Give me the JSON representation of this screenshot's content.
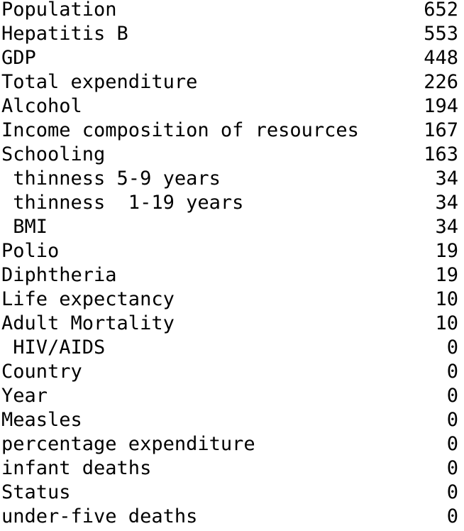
{
  "rows": [
    {
      "name": "Population",
      "count": "652"
    },
    {
      "name": "Hepatitis B",
      "count": "553"
    },
    {
      "name": "GDP",
      "count": "448"
    },
    {
      "name": "Total expenditure",
      "count": "226"
    },
    {
      "name": "Alcohol",
      "count": "194"
    },
    {
      "name": "Income composition of resources",
      "count": "167"
    },
    {
      "name": "Schooling",
      "count": "163"
    },
    {
      "name": " thinness 5-9 years",
      "count": "34"
    },
    {
      "name": " thinness  1-19 years",
      "count": "34"
    },
    {
      "name": " BMI",
      "count": "34"
    },
    {
      "name": "Polio",
      "count": "19"
    },
    {
      "name": "Diphtheria",
      "count": "19"
    },
    {
      "name": "Life expectancy",
      "count": "10"
    },
    {
      "name": "Adult Mortality",
      "count": "10"
    },
    {
      "name": " HIV/AIDS",
      "count": "0"
    },
    {
      "name": "Country",
      "count": "0"
    },
    {
      "name": "Year",
      "count": "0"
    },
    {
      "name": "Measles",
      "count": "0"
    },
    {
      "name": "percentage expenditure",
      "count": "0"
    },
    {
      "name": "infant deaths",
      "count": "0"
    },
    {
      "name": "Status",
      "count": "0"
    },
    {
      "name": "under-five deaths",
      "count": "0"
    }
  ]
}
